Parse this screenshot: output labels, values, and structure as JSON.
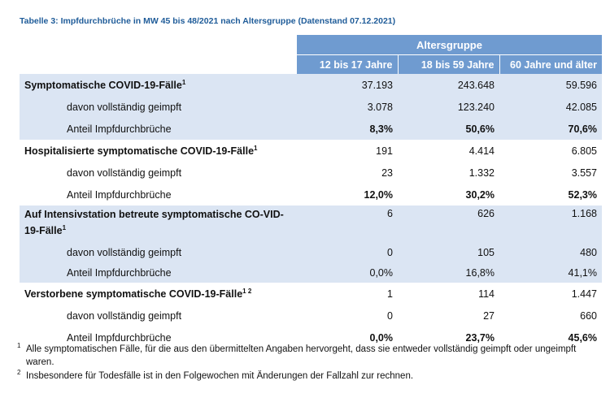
{
  "caption": "Tabelle 3: Impfdurchbrüche in MW 45 bis 48/2021 nach Altersgruppe (Datenstand 07.12.2021)",
  "table": {
    "group_header": "Altersgruppe",
    "columns": [
      "12 bis 17 Jahre",
      "18 bis 59 Jahre",
      "60 Jahre und älter"
    ],
    "sections": [
      {
        "label": "Symptomatische COVID-19-Fälle",
        "sup": "1",
        "values": [
          "37.193",
          "243.648",
          "59.596"
        ],
        "vaccinated_label": "davon vollständig geimpft",
        "vaccinated": [
          "3.078",
          "123.240",
          "42.085"
        ],
        "share_label": "Anteil Impfdurchbrüche",
        "share": [
          "8,3%",
          "50,6%",
          "70,6%"
        ]
      },
      {
        "label": "Hospitalisierte symptomatische COVID-19-Fälle",
        "sup": "1",
        "values": [
          "191",
          "4.414",
          "6.805"
        ],
        "vaccinated_label": "davon vollständig geimpft",
        "vaccinated": [
          "23",
          "1.332",
          "3.557"
        ],
        "share_label": "Anteil Impfdurchbrüche",
        "share": [
          "12,0%",
          "30,2%",
          "52,3%"
        ]
      },
      {
        "label": "Auf Intensivstation betreute symptomatische CO-VID-19-Fälle",
        "sup": "1",
        "values": [
          "6",
          "626",
          "1.168"
        ],
        "vaccinated_label": "davon vollständig geimpft",
        "vaccinated": [
          "0",
          "105",
          "480"
        ],
        "share_label": "Anteil Impfdurchbrüche",
        "share": [
          "0,0%",
          "16,8%",
          "41,1%"
        ]
      },
      {
        "label": "Verstorbene symptomatische COVID-19-Fälle",
        "sup": "1 2",
        "values": [
          "1",
          "114",
          "1.447"
        ],
        "vaccinated_label": "davon vollständig geimpft",
        "vaccinated": [
          "0",
          "27",
          "660"
        ],
        "share_label": "Anteil Impfdurchbrüche",
        "share": [
          "0,0%",
          "23,7%",
          "45,6%"
        ]
      }
    ]
  },
  "footnotes": [
    {
      "mark": "1",
      "text": "Alle symptomatischen Fälle, für die aus den übermittelten Angaben hervorgeht, dass sie entweder vollständig geimpft oder ungeimpft waren."
    },
    {
      "mark": "2",
      "text": "Insbesondere für Todesfälle ist in den Folgewochen mit Änderungen der Fallzahl zur rechnen."
    }
  ]
}
